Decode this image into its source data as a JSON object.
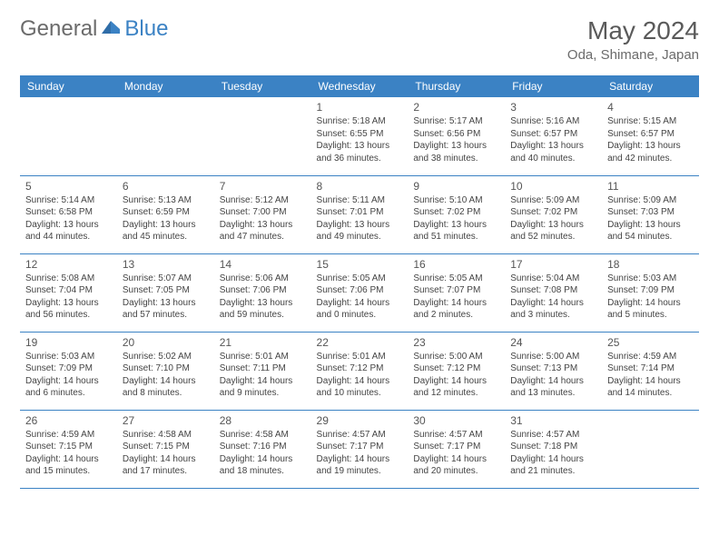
{
  "logo": {
    "general": "General",
    "blue": "Blue"
  },
  "title": "May 2024",
  "location": "Oda, Shimane, Japan",
  "colors": {
    "header_bg": "#3b82c4",
    "header_text": "#ffffff",
    "border": "#3b82c4",
    "text_gray": "#6b6b6b",
    "body_text": "#444444"
  },
  "day_headers": [
    "Sunday",
    "Monday",
    "Tuesday",
    "Wednesday",
    "Thursday",
    "Friday",
    "Saturday"
  ],
  "weeks": [
    [
      null,
      null,
      null,
      {
        "n": "1",
        "sr": "5:18 AM",
        "ss": "6:55 PM",
        "dl": "13 hours and 36 minutes."
      },
      {
        "n": "2",
        "sr": "5:17 AM",
        "ss": "6:56 PM",
        "dl": "13 hours and 38 minutes."
      },
      {
        "n": "3",
        "sr": "5:16 AM",
        "ss": "6:57 PM",
        "dl": "13 hours and 40 minutes."
      },
      {
        "n": "4",
        "sr": "5:15 AM",
        "ss": "6:57 PM",
        "dl": "13 hours and 42 minutes."
      }
    ],
    [
      {
        "n": "5",
        "sr": "5:14 AM",
        "ss": "6:58 PM",
        "dl": "13 hours and 44 minutes."
      },
      {
        "n": "6",
        "sr": "5:13 AM",
        "ss": "6:59 PM",
        "dl": "13 hours and 45 minutes."
      },
      {
        "n": "7",
        "sr": "5:12 AM",
        "ss": "7:00 PM",
        "dl": "13 hours and 47 minutes."
      },
      {
        "n": "8",
        "sr": "5:11 AM",
        "ss": "7:01 PM",
        "dl": "13 hours and 49 minutes."
      },
      {
        "n": "9",
        "sr": "5:10 AM",
        "ss": "7:02 PM",
        "dl": "13 hours and 51 minutes."
      },
      {
        "n": "10",
        "sr": "5:09 AM",
        "ss": "7:02 PM",
        "dl": "13 hours and 52 minutes."
      },
      {
        "n": "11",
        "sr": "5:09 AM",
        "ss": "7:03 PM",
        "dl": "13 hours and 54 minutes."
      }
    ],
    [
      {
        "n": "12",
        "sr": "5:08 AM",
        "ss": "7:04 PM",
        "dl": "13 hours and 56 minutes."
      },
      {
        "n": "13",
        "sr": "5:07 AM",
        "ss": "7:05 PM",
        "dl": "13 hours and 57 minutes."
      },
      {
        "n": "14",
        "sr": "5:06 AM",
        "ss": "7:06 PM",
        "dl": "13 hours and 59 minutes."
      },
      {
        "n": "15",
        "sr": "5:05 AM",
        "ss": "7:06 PM",
        "dl": "14 hours and 0 minutes."
      },
      {
        "n": "16",
        "sr": "5:05 AM",
        "ss": "7:07 PM",
        "dl": "14 hours and 2 minutes."
      },
      {
        "n": "17",
        "sr": "5:04 AM",
        "ss": "7:08 PM",
        "dl": "14 hours and 3 minutes."
      },
      {
        "n": "18",
        "sr": "5:03 AM",
        "ss": "7:09 PM",
        "dl": "14 hours and 5 minutes."
      }
    ],
    [
      {
        "n": "19",
        "sr": "5:03 AM",
        "ss": "7:09 PM",
        "dl": "14 hours and 6 minutes."
      },
      {
        "n": "20",
        "sr": "5:02 AM",
        "ss": "7:10 PM",
        "dl": "14 hours and 8 minutes."
      },
      {
        "n": "21",
        "sr": "5:01 AM",
        "ss": "7:11 PM",
        "dl": "14 hours and 9 minutes."
      },
      {
        "n": "22",
        "sr": "5:01 AM",
        "ss": "7:12 PM",
        "dl": "14 hours and 10 minutes."
      },
      {
        "n": "23",
        "sr": "5:00 AM",
        "ss": "7:12 PM",
        "dl": "14 hours and 12 minutes."
      },
      {
        "n": "24",
        "sr": "5:00 AM",
        "ss": "7:13 PM",
        "dl": "14 hours and 13 minutes."
      },
      {
        "n": "25",
        "sr": "4:59 AM",
        "ss": "7:14 PM",
        "dl": "14 hours and 14 minutes."
      }
    ],
    [
      {
        "n": "26",
        "sr": "4:59 AM",
        "ss": "7:15 PM",
        "dl": "14 hours and 15 minutes."
      },
      {
        "n": "27",
        "sr": "4:58 AM",
        "ss": "7:15 PM",
        "dl": "14 hours and 17 minutes."
      },
      {
        "n": "28",
        "sr": "4:58 AM",
        "ss": "7:16 PM",
        "dl": "14 hours and 18 minutes."
      },
      {
        "n": "29",
        "sr": "4:57 AM",
        "ss": "7:17 PM",
        "dl": "14 hours and 19 minutes."
      },
      {
        "n": "30",
        "sr": "4:57 AM",
        "ss": "7:17 PM",
        "dl": "14 hours and 20 minutes."
      },
      {
        "n": "31",
        "sr": "4:57 AM",
        "ss": "7:18 PM",
        "dl": "14 hours and 21 minutes."
      },
      null
    ]
  ]
}
